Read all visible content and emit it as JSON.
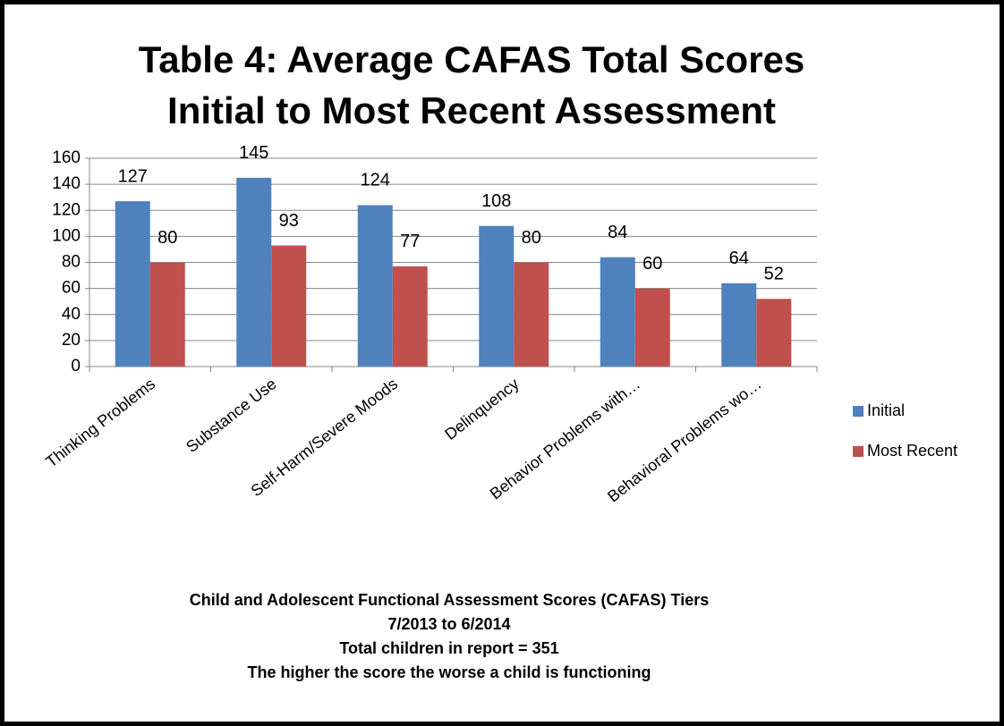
{
  "chart_data": {
    "type": "bar",
    "title": [
      "Table 4: Average CAFAS Total Scores",
      "Initial to Most Recent Assessment"
    ],
    "categories": [
      "Thinking Problems",
      "Substance Use",
      "Self-Harm/Severe Moods",
      "Delinquency",
      "Behavior Problems with…",
      "Behavioral Problems wo…"
    ],
    "series": [
      {
        "name": "Initial",
        "color": "#4f81bd",
        "values": [
          127,
          145,
          124,
          108,
          84,
          64
        ]
      },
      {
        "name": "Most Recent",
        "color": "#c0504d",
        "values": [
          80,
          93,
          77,
          80,
          60,
          52
        ]
      }
    ],
    "ylim": [
      0,
      160
    ],
    "yticks": [
      0,
      20,
      40,
      60,
      80,
      100,
      120,
      140,
      160
    ],
    "grid": true,
    "legend": "right",
    "notes": [
      "Child and Adolescent Functional Assessment Scores (CAFAS) Tiers",
      "7/2013 to 6/2014",
      "Total children in report = 351",
      "The higher the score the worse a child is functioning"
    ]
  }
}
